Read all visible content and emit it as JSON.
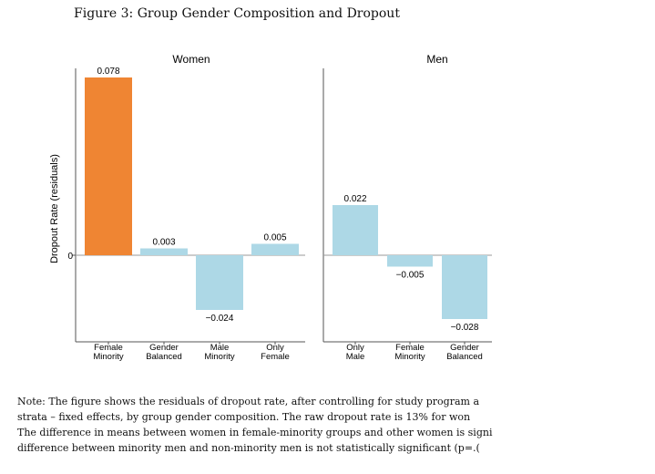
{
  "figure": {
    "title": "Figure 3: Group Gender Composition and Dropout",
    "note_lines": [
      "Note: The figure shows the residuals of dropout rate, after controlling for study program a",
      "strata – fixed effects, by group gender composition. The raw dropout rate is 13% for won",
      "The difference in means between women in female-minority groups and other women is signi",
      "difference between minority men and non-minority men is not statistically significant (p=.("
    ]
  },
  "chart_data": {
    "type": "bar",
    "ylabel": "Dropout Rate (residuals)",
    "y_ticks": [
      0
    ],
    "ylim": [
      -0.038,
      0.082
    ],
    "grid": false,
    "panels": [
      {
        "title": "Women",
        "categories": [
          "Female\nMinority",
          "Gender\nBalanced",
          "Male\nMinority",
          "Only\nFemale"
        ],
        "values": [
          0.078,
          0.003,
          -0.024,
          0.005
        ],
        "value_labels": [
          "0.078",
          "0.003",
          "−0.024",
          "0.005"
        ],
        "colors": [
          "#EF8533",
          "#ADD8E6",
          "#ADD8E6",
          "#ADD8E6"
        ]
      },
      {
        "title": "Men",
        "categories": [
          "Only\nMale",
          "Female\nMinority",
          "Gender\nBalanced"
        ],
        "values": [
          0.022,
          -0.005,
          -0.028
        ],
        "value_labels": [
          "0.022",
          "−0.005",
          "−0.028"
        ],
        "colors": [
          "#ADD8E6",
          "#ADD8E6",
          "#ADD8E6"
        ]
      }
    ]
  }
}
